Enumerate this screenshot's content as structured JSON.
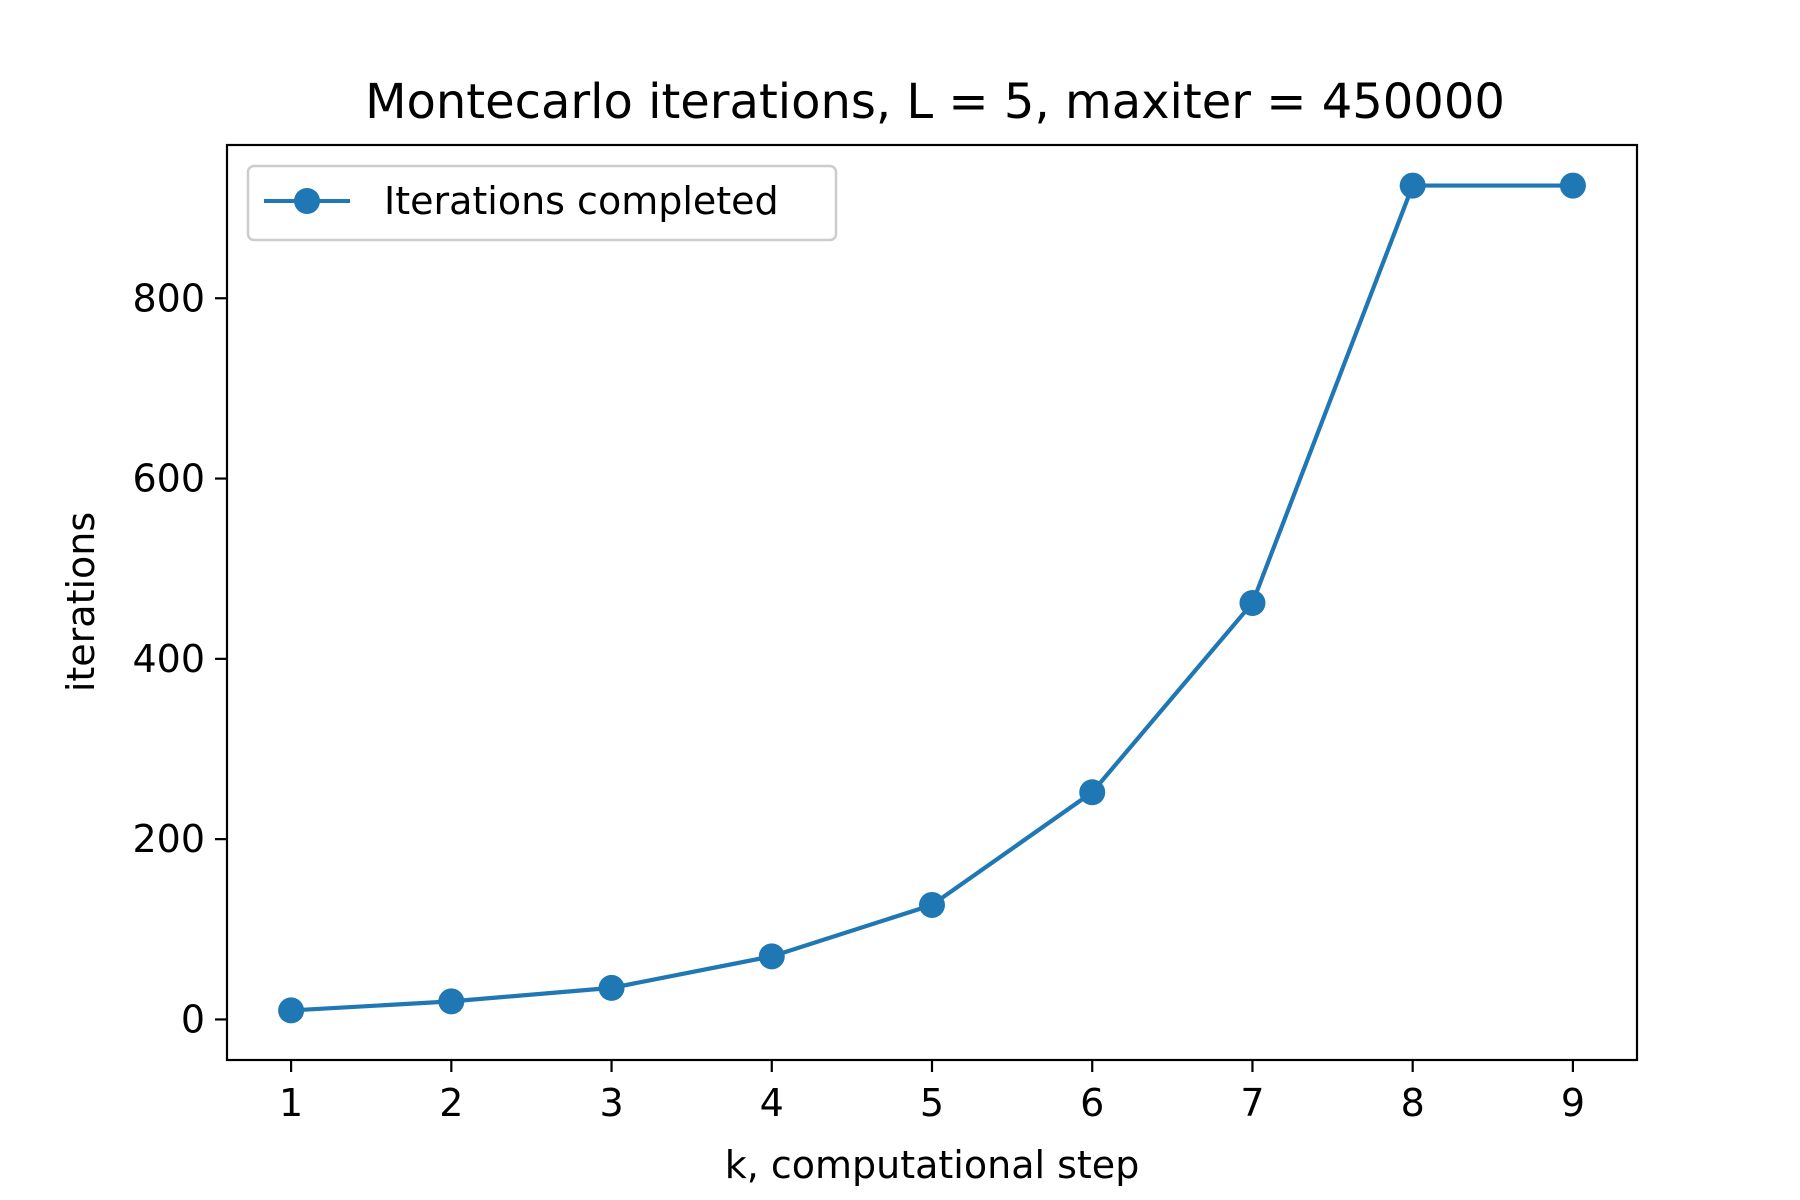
{
  "chart_data": {
    "type": "line",
    "title": "Montecarlo iterations, L = 5, maxiter = 450000",
    "xlabel": "k, computational step",
    "ylabel": "iterations",
    "xlim": [
      0.6,
      9.4
    ],
    "ylim": [
      -45,
      970
    ],
    "xticks": [
      1,
      2,
      3,
      4,
      5,
      6,
      7,
      8,
      9
    ],
    "yticks": [
      0,
      200,
      400,
      600,
      800
    ],
    "grid": false,
    "legend_position": "upper-left",
    "series": [
      {
        "name": "Iterations completed",
        "color": "#1f77b4",
        "marker": "circle",
        "x": [
          1,
          2,
          3,
          4,
          5,
          6,
          7,
          8,
          9
        ],
        "y": [
          10,
          20,
          35,
          70,
          127,
          252,
          462,
          925,
          925
        ]
      }
    ]
  }
}
